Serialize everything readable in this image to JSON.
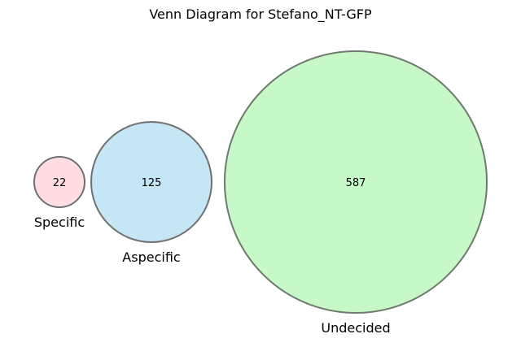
{
  "title": "Venn Diagram for Stefano_NT-GFP",
  "sets": [
    {
      "label": "Specific",
      "count": "22",
      "fill": "#ffdde3",
      "stroke": "#707070"
    },
    {
      "label": "Aspecific",
      "count": "125",
      "fill": "#c5e6f4",
      "stroke": "#707070"
    },
    {
      "label": "Undecided",
      "count": "587",
      "fill": "#c6f8c8",
      "stroke": "#6f7a6f"
    }
  ]
}
